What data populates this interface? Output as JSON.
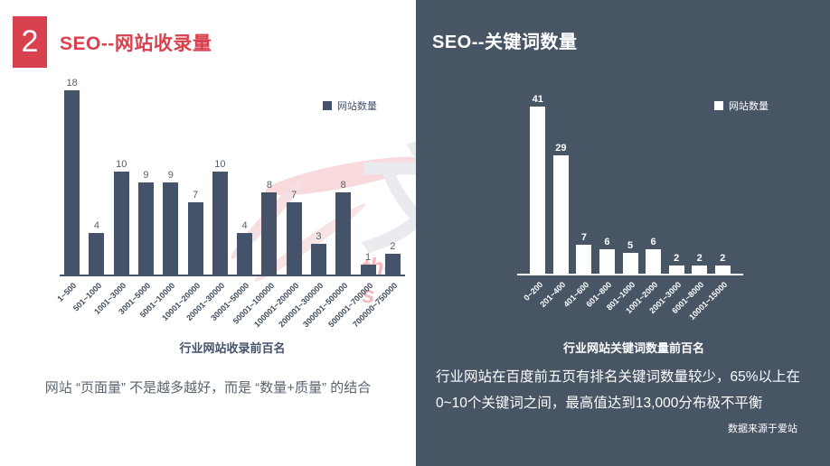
{
  "theme": {
    "accent_red": "#D9414E",
    "dark_panel": "#475565",
    "bar_dark": "#44536A",
    "bar_light": "#FFFFFF"
  },
  "left": {
    "slide_number": "2",
    "title": "SEO--网站收录量",
    "legend_label": "网站数量",
    "axis_title": "行业网站收录前百名",
    "caption": "网站 “页面量” 不是越多越好，而是 “数量+质量” 的结合",
    "watermark_glyph": "文",
    "watermark_text": "the s"
  },
  "right": {
    "title": "SEO--关键词数量",
    "legend_label": "网站数量",
    "axis_title": "行业网站关键词数量前百名",
    "caption": "行业网站在百度前五页有排名关键词数量较少，65%以上在0~10个关键词之间，最高值达到13,000分布极不平衡",
    "source": "数据来源于爱站"
  },
  "chart_data": [
    {
      "type": "bar",
      "title": "行业网站收录前百名",
      "legend": "网站数量",
      "legend_position": "top-right",
      "grid": false,
      "value_labels": true,
      "bar_color": "#44536A",
      "categories": [
        "1~500",
        "501~1000",
        "1001~3000",
        "3001~5000",
        "5001~10000",
        "10001~20000",
        "20001~30000",
        "30001~50000",
        "50001~100000",
        "100001~200000",
        "200001~300000",
        "300001~500000",
        "500001~700000",
        "700000~750000"
      ],
      "values": [
        18,
        4,
        10,
        9,
        9,
        7,
        10,
        4,
        8,
        7,
        3,
        8,
        1,
        2
      ],
      "xlabel": "",
      "ylabel": "",
      "ylim": [
        0,
        18
      ]
    },
    {
      "type": "bar",
      "title": "行业网站关键词数量前百名",
      "legend": "网站数量",
      "legend_position": "top-right",
      "grid": false,
      "value_labels": true,
      "bar_color": "#FFFFFF",
      "categories": [
        "0~200",
        "201~400",
        "401~600",
        "601~800",
        "801~1000",
        "1001~2000",
        "2001~3000",
        "6001~8000",
        "10001~15000"
      ],
      "values": [
        41,
        29,
        7,
        6,
        5,
        6,
        2,
        2,
        2
      ],
      "xlabel": "",
      "ylabel": "",
      "ylim": [
        0,
        41
      ]
    }
  ]
}
